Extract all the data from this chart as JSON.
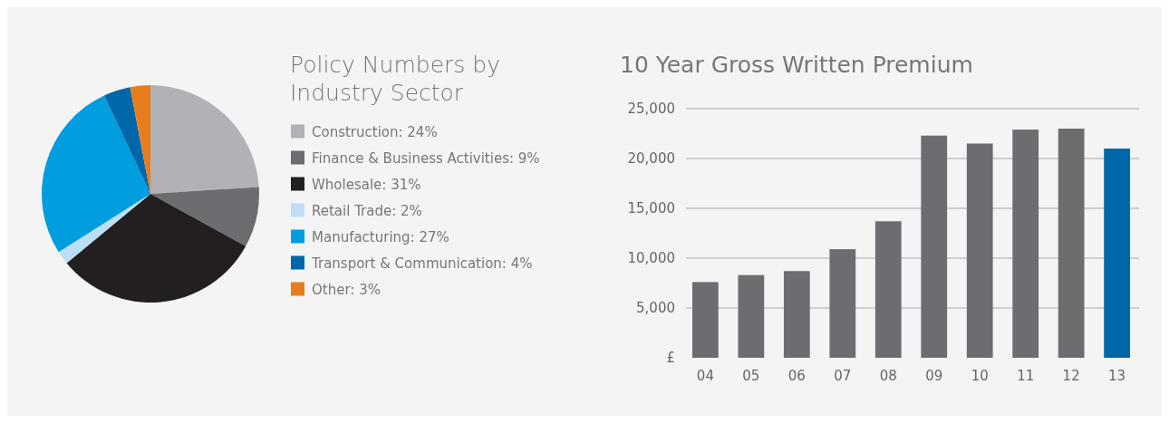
{
  "chart_data": [
    {
      "type": "pie",
      "title": "Policy Numbers by Industry Sector",
      "legend": "right",
      "categories": [
        "Construction: 24%",
        "Finance & Business Activities: 9%",
        "Wholesale: 31%",
        "Retail Trade: 2%",
        "Manufacturing: 27%",
        "Transport & Communication: 4%",
        "Other: 3%"
      ],
      "values": [
        24,
        9,
        31,
        2,
        27,
        4,
        3
      ],
      "colors": [
        "#b1b2b5",
        "#6d6d71",
        "#231f20",
        "#bcdff5",
        "#009ddf",
        "#0067a8",
        "#e87d1e"
      ]
    },
    {
      "type": "bar",
      "title": "10 Year Gross Written Premium",
      "categories": [
        "04",
        "05",
        "06",
        "07",
        "08",
        "09",
        "10",
        "11",
        "12",
        "13"
      ],
      "values": [
        7600,
        8300,
        8700,
        10900,
        13700,
        22300,
        21500,
        22900,
        23000,
        21000
      ],
      "colors": [
        "#6d6d71",
        "#6d6d71",
        "#6d6d71",
        "#6d6d71",
        "#6d6d71",
        "#6d6d71",
        "#6d6d71",
        "#6d6d71",
        "#6d6d71",
        "#0067a8"
      ],
      "ylim": [
        0,
        25000
      ],
      "yticks": [
        {
          "value": 0,
          "label": "£"
        },
        {
          "value": 5000,
          "label": "5,000"
        },
        {
          "value": 10000,
          "label": "10,000"
        },
        {
          "value": 15000,
          "label": "15,000"
        },
        {
          "value": 20000,
          "label": "20,000"
        },
        {
          "value": 25000,
          "label": "25,000"
        }
      ],
      "grid": "y"
    }
  ]
}
